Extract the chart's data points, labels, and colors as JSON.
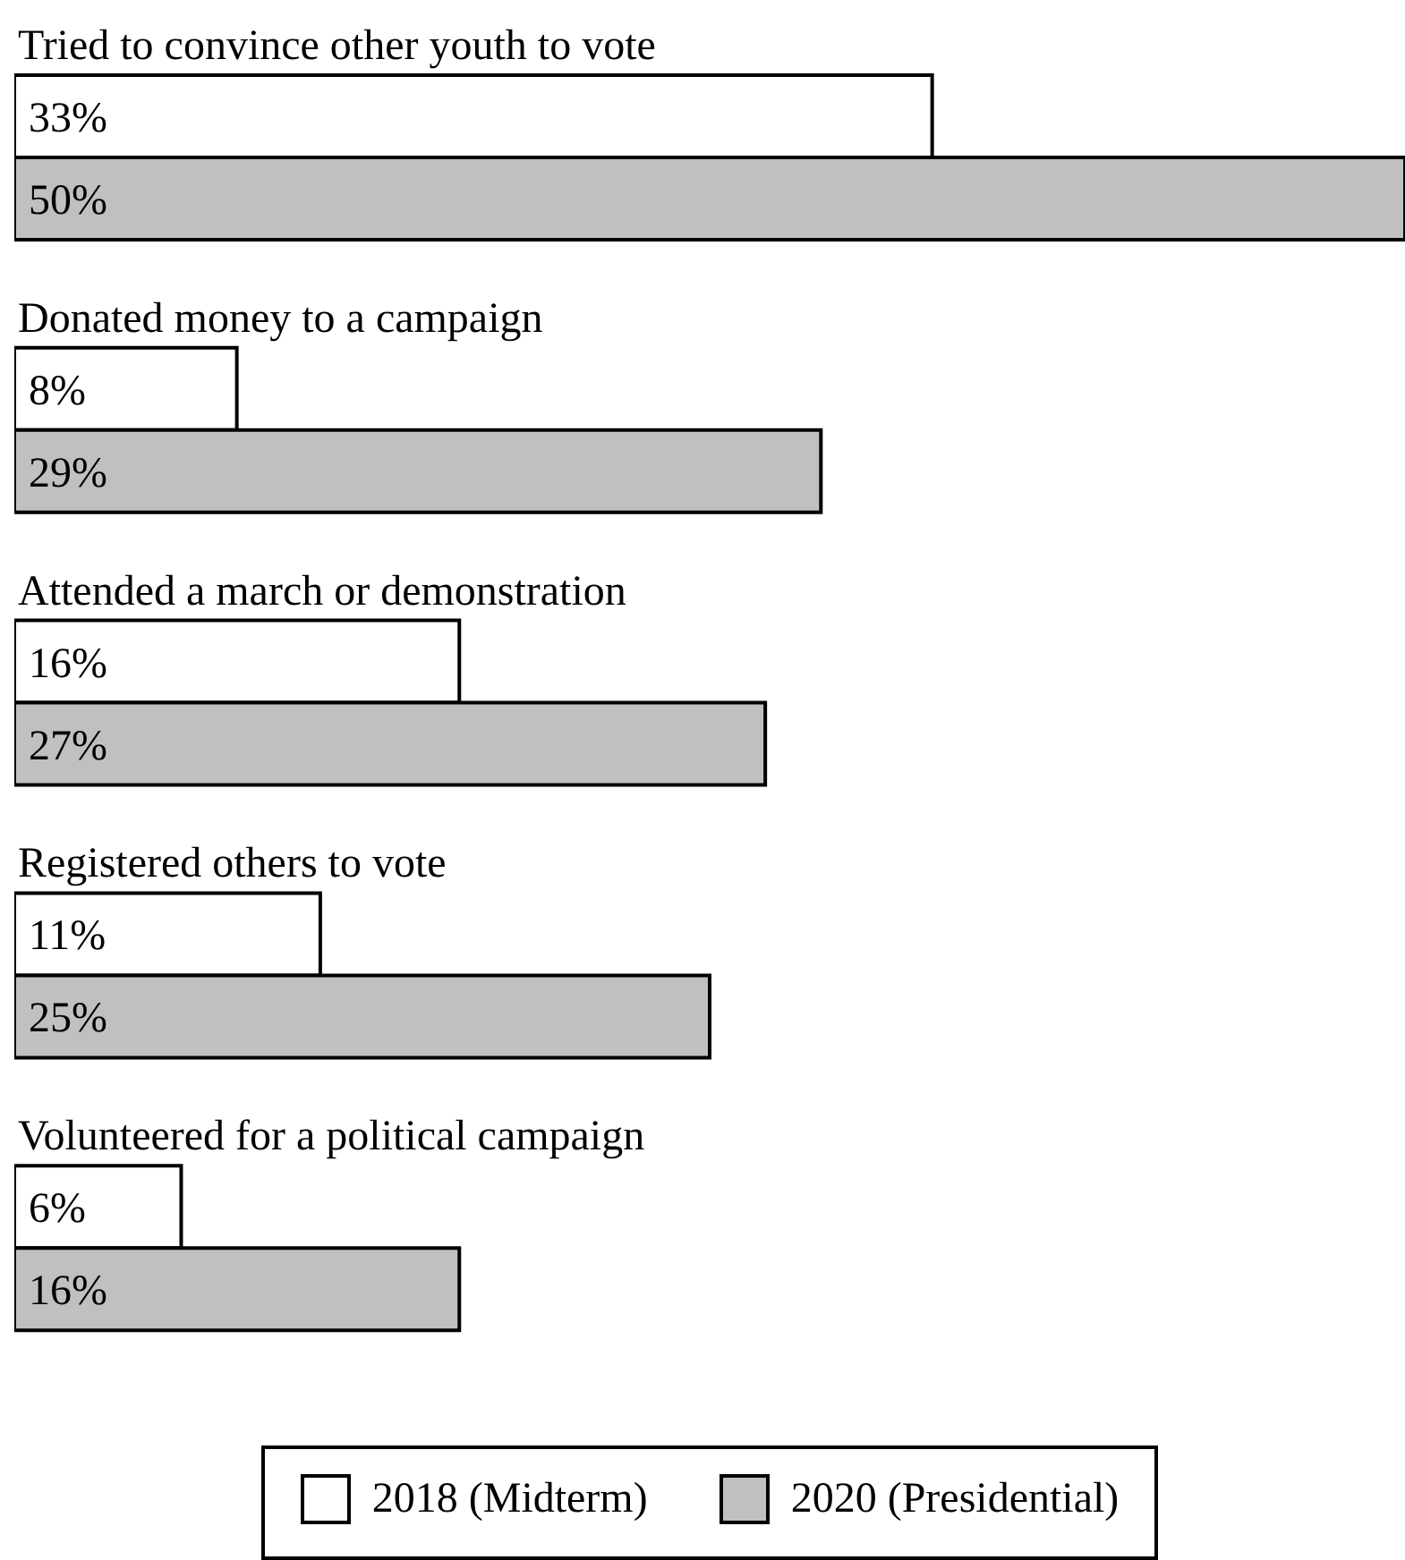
{
  "chart_data": {
    "type": "bar",
    "orientation": "horizontal",
    "categories": [
      "Tried to convince other youth to vote",
      "Donated money to a campaign",
      "Attended a march or demonstration",
      "Registered others to vote",
      "Volunteered for a political campaign"
    ],
    "series": [
      {
        "name": "2018 (Midterm)",
        "color": "#ffffff",
        "values": [
          33,
          8,
          16,
          11,
          6
        ],
        "value_labels": [
          "33%",
          "8%",
          "16%",
          "11%",
          "6%"
        ]
      },
      {
        "name": "2020 (Presidential)",
        "color": "#c0c0c0",
        "values": [
          50,
          29,
          27,
          25,
          16
        ],
        "value_labels": [
          "50%",
          "29%",
          "27%",
          "25%",
          "16%"
        ]
      }
    ],
    "legend": "bottom",
    "grid": false
  }
}
